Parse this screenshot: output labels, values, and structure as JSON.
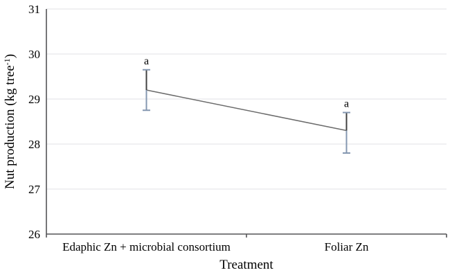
{
  "chart_data": {
    "type": "line",
    "title": "",
    "xlabel": "Treatment",
    "ylabel": "Nut production (kg tree⁻¹)",
    "ylabel_parts": {
      "main": "Nut production (kg tree",
      "sup": "-1",
      "close": ")"
    },
    "categories": [
      "Edaphic Zn + microbial consortium",
      "Foliar Zn"
    ],
    "values": [
      29.2,
      28.3
    ],
    "error_high": [
      29.65,
      28.7
    ],
    "error_low": [
      28.75,
      27.8
    ],
    "point_labels": [
      "a",
      "a"
    ],
    "ylim": [
      26,
      31
    ],
    "yticks": [
      26,
      27,
      28,
      29,
      30,
      31
    ],
    "grid": "horizontal gridlines at each y tick, none vertical",
    "legend": "none",
    "marker": "none",
    "colors": {
      "series_line": "#6b6b6b",
      "error_bar": "#8497b0",
      "error_bar_upper_segment": "#404040",
      "gridline": "#e7e7ea",
      "axis": "#545456",
      "text": "#000000",
      "background": "#ffffff"
    }
  }
}
